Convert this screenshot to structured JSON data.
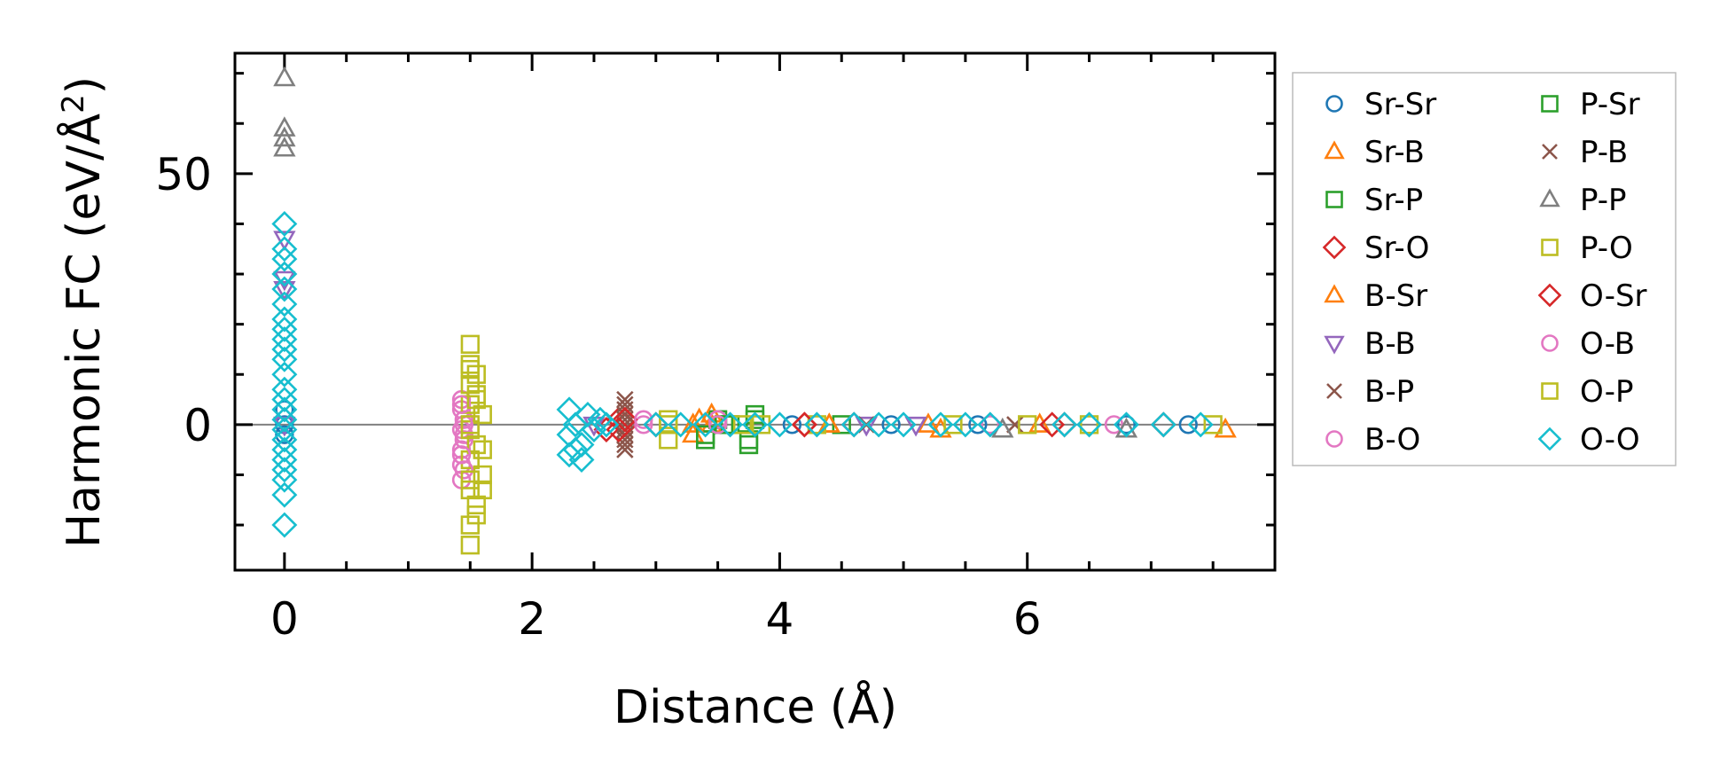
{
  "chart_data": {
    "type": "scatter",
    "xlabel": "Distance (Å)",
    "ylabel_main": "Harmonic FC (eV/Å",
    "ylabel_sup": "2",
    "ylabel_close": ")",
    "xlim": [
      -0.4,
      8.0
    ],
    "ylim": [
      -29,
      74
    ],
    "xticks": [
      0,
      2,
      4,
      6
    ],
    "xtick_labels": [
      "0",
      "2",
      "4",
      "6"
    ],
    "xminor_step": 0.5,
    "yticks": [
      0,
      50
    ],
    "ytick_labels": [
      "0",
      "50"
    ],
    "yminor_step": 10,
    "zero_line": true,
    "legend_position": "outside-right",
    "series": [
      {
        "name": "Sr-Sr",
        "marker": "circle",
        "color": "#1f77b4",
        "points": [
          [
            0,
            0
          ],
          [
            0,
            3
          ],
          [
            0,
            -2
          ],
          [
            4.1,
            0
          ],
          [
            4.9,
            0
          ],
          [
            5.6,
            0
          ],
          [
            6.8,
            0
          ],
          [
            7.3,
            0
          ]
        ]
      },
      {
        "name": "Sr-B",
        "marker": "triangle-up",
        "color": "#ff7f0e",
        "points": [
          [
            3.3,
            -2
          ],
          [
            3.35,
            1
          ],
          [
            3.45,
            0
          ],
          [
            4.4,
            0
          ],
          [
            5.2,
            0
          ],
          [
            6.1,
            0
          ],
          [
            7.6,
            -1
          ]
        ]
      },
      {
        "name": "Sr-P",
        "marker": "square",
        "color": "#2ca02c",
        "points": [
          [
            3.4,
            -3
          ],
          [
            3.5,
            1
          ],
          [
            3.6,
            0
          ],
          [
            3.75,
            -4
          ],
          [
            3.8,
            2
          ],
          [
            4.5,
            0
          ]
        ]
      },
      {
        "name": "Sr-O",
        "marker": "diamond",
        "color": "#d62728",
        "points": [
          [
            2.6,
            -1
          ],
          [
            2.7,
            1
          ],
          [
            2.75,
            0
          ],
          [
            3.0,
            0
          ],
          [
            4.2,
            0
          ],
          [
            4.6,
            0
          ],
          [
            6.3,
            0
          ],
          [
            7.1,
            0
          ]
        ]
      },
      {
        "name": "B-Sr",
        "marker": "triangle-up",
        "color": "#ff7f0e",
        "points": [
          [
            3.3,
            0
          ],
          [
            3.45,
            2
          ],
          [
            4.4,
            0
          ],
          [
            5.3,
            -1
          ]
        ]
      },
      {
        "name": "B-B",
        "marker": "triangle-down",
        "color": "#9467bd",
        "points": [
          [
            0,
            37
          ],
          [
            0,
            29
          ],
          [
            0,
            27
          ],
          [
            0,
            0
          ],
          [
            2.5,
            0
          ],
          [
            4.7,
            0
          ],
          [
            5.1,
            0
          ]
        ]
      },
      {
        "name": "B-P",
        "marker": "x",
        "color": "#8c564b",
        "points": [
          [
            2.75,
            5
          ],
          [
            2.75,
            3
          ],
          [
            2.75,
            1
          ],
          [
            2.75,
            -1
          ],
          [
            2.75,
            -3
          ],
          [
            2.75,
            -5
          ],
          [
            4.7,
            0
          ],
          [
            5.9,
            0
          ]
        ]
      },
      {
        "name": "B-O",
        "marker": "circle",
        "color": "#e377c2",
        "points": [
          [
            1.43,
            5
          ],
          [
            1.43,
            3
          ],
          [
            1.45,
            1
          ],
          [
            1.43,
            -1
          ],
          [
            1.45,
            -3
          ],
          [
            1.43,
            -5
          ],
          [
            1.43,
            -8
          ],
          [
            1.43,
            -11
          ],
          [
            1.45,
            -2
          ],
          [
            2.9,
            0
          ],
          [
            3.5,
            1
          ],
          [
            5.7,
            0
          ],
          [
            6.7,
            0
          ]
        ]
      },
      {
        "name": "P-Sr",
        "marker": "square",
        "color": "#2ca02c",
        "points": [
          [
            3.4,
            -2
          ],
          [
            3.55,
            0
          ],
          [
            3.75,
            -3
          ],
          [
            3.8,
            1
          ]
        ]
      },
      {
        "name": "P-B",
        "marker": "x",
        "color": "#8c564b",
        "points": [
          [
            2.75,
            4
          ],
          [
            2.75,
            2
          ],
          [
            2.75,
            0
          ],
          [
            2.75,
            -2
          ],
          [
            2.75,
            -4
          ]
        ]
      },
      {
        "name": "P-P",
        "marker": "triangle-up",
        "color": "#7f7f7f",
        "points": [
          [
            0,
            69
          ],
          [
            0,
            59
          ],
          [
            0,
            57
          ],
          [
            0,
            55
          ],
          [
            5.8,
            -1
          ],
          [
            6.8,
            -1
          ]
        ]
      },
      {
        "name": "P-O",
        "marker": "square",
        "color": "#bcbd22",
        "points": [
          [
            1.5,
            16
          ],
          [
            1.5,
            11
          ],
          [
            1.5,
            8
          ],
          [
            1.55,
            6
          ],
          [
            1.5,
            4
          ],
          [
            1.6,
            2
          ],
          [
            1.5,
            -1
          ],
          [
            1.55,
            -4
          ],
          [
            1.5,
            -7
          ],
          [
            1.6,
            -10
          ],
          [
            1.5,
            -13
          ],
          [
            1.55,
            -16
          ],
          [
            1.5,
            -20
          ],
          [
            1.5,
            -24
          ],
          [
            1.6,
            -13
          ],
          [
            1.55,
            10
          ],
          [
            3.1,
            -3
          ],
          [
            3.1,
            1
          ],
          [
            3.7,
            0
          ],
          [
            4.3,
            0
          ],
          [
            5.4,
            0
          ],
          [
            6.0,
            0
          ],
          [
            6.5,
            0
          ],
          [
            7.5,
            0
          ]
        ]
      },
      {
        "name": "O-Sr",
        "marker": "diamond",
        "color": "#d62728",
        "points": [
          [
            2.7,
            -1
          ],
          [
            2.75,
            1
          ],
          [
            4.2,
            0
          ],
          [
            6.2,
            0
          ]
        ]
      },
      {
        "name": "O-B",
        "marker": "circle",
        "color": "#e377c2",
        "points": [
          [
            1.43,
            4
          ],
          [
            1.45,
            0
          ],
          [
            1.43,
            -6
          ],
          [
            1.45,
            -9
          ],
          [
            2.9,
            1
          ],
          [
            3.5,
            0
          ]
        ]
      },
      {
        "name": "O-P",
        "marker": "square",
        "color": "#bcbd22",
        "points": [
          [
            1.5,
            12
          ],
          [
            1.55,
            5
          ],
          [
            1.5,
            0
          ],
          [
            1.6,
            -5
          ],
          [
            1.5,
            -11
          ],
          [
            1.55,
            -18
          ],
          [
            3.1,
            0
          ],
          [
            3.85,
            0
          ]
        ]
      },
      {
        "name": "O-O",
        "marker": "diamond",
        "color": "#17becf",
        "points": [
          [
            0,
            40
          ],
          [
            0,
            35
          ],
          [
            0,
            33
          ],
          [
            0,
            30
          ],
          [
            0,
            27
          ],
          [
            0,
            24
          ],
          [
            0,
            21
          ],
          [
            0,
            19
          ],
          [
            0,
            17
          ],
          [
            0,
            15
          ],
          [
            0,
            13
          ],
          [
            0,
            10
          ],
          [
            0,
            7
          ],
          [
            0,
            5
          ],
          [
            0,
            3
          ],
          [
            0,
            1
          ],
          [
            0,
            -1
          ],
          [
            0,
            -3
          ],
          [
            0,
            -5
          ],
          [
            0,
            -7
          ],
          [
            0,
            -9
          ],
          [
            0,
            -11
          ],
          [
            0,
            -14
          ],
          [
            0,
            -20
          ],
          [
            2.3,
            3
          ],
          [
            2.3,
            -2
          ],
          [
            2.3,
            -6
          ],
          [
            2.35,
            0
          ],
          [
            2.4,
            -4
          ],
          [
            2.45,
            2
          ],
          [
            2.5,
            -1
          ],
          [
            2.55,
            1
          ],
          [
            2.6,
            0
          ],
          [
            2.4,
            -7
          ],
          [
            2.35,
            -5
          ],
          [
            3.0,
            0
          ],
          [
            3.2,
            0
          ],
          [
            3.4,
            0
          ],
          [
            3.6,
            0
          ],
          [
            3.8,
            0
          ],
          [
            4.0,
            0
          ],
          [
            4.3,
            0
          ],
          [
            4.6,
            0
          ],
          [
            4.8,
            0
          ],
          [
            5.0,
            0
          ],
          [
            5.3,
            0
          ],
          [
            5.5,
            0
          ],
          [
            5.7,
            0
          ],
          [
            6.3,
            0
          ],
          [
            6.5,
            0
          ],
          [
            6.8,
            0
          ],
          [
            7.1,
            0
          ],
          [
            7.4,
            0
          ]
        ]
      }
    ]
  }
}
